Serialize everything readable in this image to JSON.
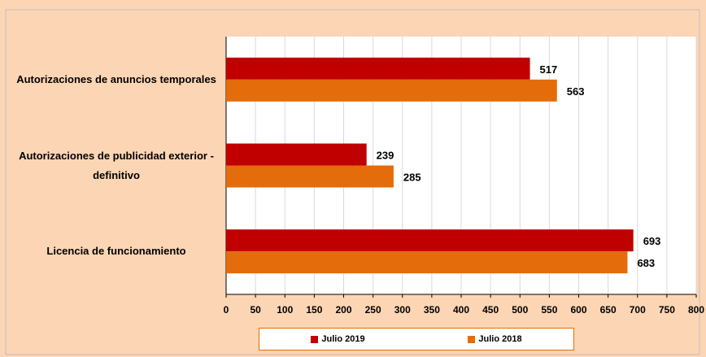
{
  "chart_data": {
    "type": "bar",
    "orientation": "horizontal",
    "categories": [
      "Autorizaciones de anuncios temporales",
      "Autorizaciones de publicidad exterior - definitivo",
      "Licencia de funcionamiento"
    ],
    "series": [
      {
        "name": "Julio 2019",
        "color": "#c00000",
        "values": [
          517,
          239,
          693
        ]
      },
      {
        "name": "Julio 2018",
        "color": "#e46c0a",
        "values": [
          563,
          285,
          683
        ]
      }
    ],
    "xlim": [
      0,
      800
    ],
    "xticks": [
      0,
      50,
      100,
      150,
      200,
      250,
      300,
      350,
      400,
      450,
      500,
      550,
      600,
      650,
      700,
      750,
      800
    ],
    "grid": true,
    "legend": "bottom"
  }
}
